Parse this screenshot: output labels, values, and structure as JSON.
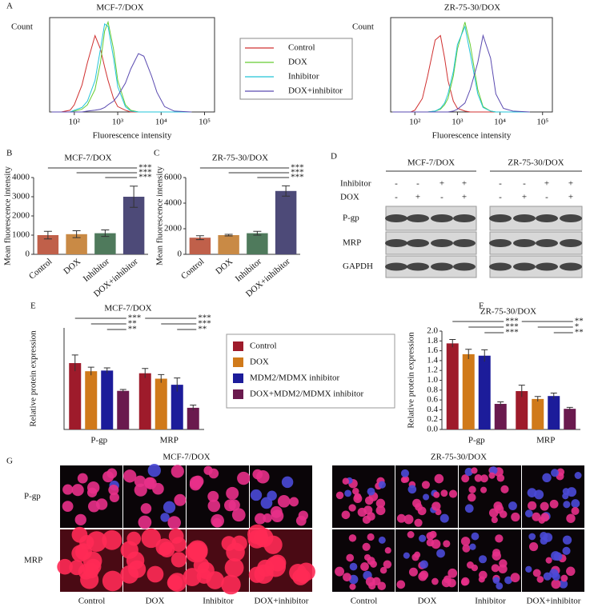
{
  "chart_data": [
    {
      "panel": "A",
      "type": "flow",
      "title": "MCF-7/DOX",
      "y_label": "Count",
      "x_label": "Fluorescence intensity",
      "log_x": true,
      "x": [
        30,
        50,
        80,
        100,
        150,
        200,
        300,
        400,
        500,
        600,
        800,
        1000,
        1500,
        2000,
        3000,
        4000,
        6000,
        8000,
        12000,
        20000,
        50000
      ],
      "xlim": [
        27,
        170000
      ],
      "xticks": [
        {
          "value": 100,
          "label": "10²"
        },
        {
          "value": 1000,
          "label": "10³"
        },
        {
          "value": 10000,
          "label": "10⁴"
        },
        {
          "value": 100000,
          "label": "10⁵"
        }
      ],
      "ylim": [
        0,
        105
      ],
      "series": [
        {
          "name": "Control",
          "color": "#d03030",
          "values": [
            0,
            0,
            2,
            8,
            30,
            55,
            85,
            70,
            50,
            35,
            15,
            6,
            2,
            0,
            0,
            0,
            0,
            0,
            0,
            0,
            0
          ]
        },
        {
          "name": "DOX",
          "color": "#66cc33",
          "values": [
            0,
            0,
            0,
            1,
            3,
            8,
            25,
            55,
            90,
            100,
            70,
            35,
            8,
            2,
            0,
            0,
            0,
            0,
            0,
            0,
            0
          ]
        },
        {
          "name": "Inhibitor",
          "color": "#22c4d8",
          "values": [
            0,
            0,
            0,
            2,
            5,
            12,
            35,
            70,
            98,
            95,
            60,
            28,
            6,
            1,
            0,
            0,
            0,
            0,
            0,
            0,
            0
          ]
        },
        {
          "name": "DOX+inhibitor",
          "color": "#5a4ab0",
          "values": [
            0,
            0,
            0,
            0,
            0,
            1,
            2,
            3,
            5,
            8,
            12,
            18,
            32,
            48,
            65,
            62,
            40,
            22,
            6,
            1,
            0
          ]
        }
      ]
    },
    {
      "type": "flow",
      "title": "ZR-75-30/DOX",
      "y_label": "Count",
      "x_label": "Fluorescence intensity",
      "log_x": true,
      "x": [
        30,
        50,
        80,
        100,
        150,
        200,
        300,
        400,
        500,
        600,
        800,
        1000,
        1500,
        2000,
        3000,
        4000,
        6000,
        8000,
        12000,
        20000,
        50000
      ],
      "xlim": [
        27,
        170000
      ],
      "xticks": [
        {
          "value": 100,
          "label": "10²"
        },
        {
          "value": 1000,
          "label": "10³"
        },
        {
          "value": 10000,
          "label": "10⁴"
        },
        {
          "value": 100000,
          "label": "10⁵"
        }
      ],
      "ylim": [
        0,
        105
      ],
      "series": [
        {
          "color": "#d03030",
          "values": [
            0,
            0,
            0,
            2,
            15,
            40,
            80,
            85,
            60,
            35,
            12,
            4,
            1,
            0,
            0,
            0,
            0,
            0,
            0,
            0,
            0
          ]
        },
        {
          "color": "#66cc33",
          "values": [
            0,
            0,
            0,
            0,
            0,
            0,
            1,
            3,
            8,
            15,
            40,
            70,
            100,
            75,
            25,
            6,
            1,
            0,
            0,
            0,
            0
          ]
        },
        {
          "color": "#22c4d8",
          "values": [
            0,
            0,
            0,
            0,
            0,
            0,
            1,
            4,
            10,
            20,
            45,
            75,
            95,
            65,
            20,
            5,
            1,
            0,
            0,
            0,
            0
          ]
        },
        {
          "color": "#5a4ab0",
          "values": [
            0,
            0,
            0,
            0,
            0,
            0,
            0,
            0,
            0,
            0,
            1,
            3,
            10,
            25,
            55,
            85,
            60,
            20,
            4,
            1,
            0
          ]
        }
      ]
    },
    {
      "panel": "B",
      "type": "bar",
      "title": "MCF-7/DOX",
      "y_label": "Mean fluorescence intensity",
      "categories": [
        "Control",
        "DOX",
        "Inhibitor",
        "DOX+inhibitor"
      ],
      "values": [
        1000,
        1050,
        1100,
        3000
      ],
      "errors": [
        200,
        180,
        170,
        550
      ],
      "colors": [
        "#c0604a",
        "#c98a45",
        "#4f7a5c",
        "#4d4a78"
      ],
      "ylim": [
        0,
        4000
      ],
      "yticks": [
        0,
        1000,
        2000,
        3000,
        4000
      ],
      "significance": [
        "***",
        "***",
        "***"
      ]
    },
    {
      "panel": "C",
      "type": "bar",
      "title": "ZR-75-30/DOX",
      "y_label": "Mean fluorescence intensity",
      "categories": [
        "Control",
        "DOX",
        "Inhibitor",
        "DOX+inhibitor"
      ],
      "values": [
        1300,
        1500,
        1650,
        4950
      ],
      "errors": [
        150,
        60,
        150,
        400
      ],
      "colors": [
        "#c0604a",
        "#c98a45",
        "#4f7a5c",
        "#4d4a78"
      ],
      "ylim": [
        0,
        6000
      ],
      "yticks": [
        0,
        2000,
        4000,
        6000
      ],
      "significance": [
        "***",
        "***",
        "***"
      ]
    },
    {
      "panel": "E",
      "type": "grouped_bar",
      "title": "MCF-7/DOX",
      "y_label": "Relative protein expression",
      "categories": [
        "P-gp",
        "MRP"
      ],
      "series": [
        {
          "name": "Control",
          "color": "#9e1b2b",
          "values": [
            0.98,
            0.83
          ],
          "errors": [
            0.12,
            0.07
          ]
        },
        {
          "name": "DOX",
          "color": "#d07a1a",
          "values": [
            0.86,
            0.75
          ],
          "errors": [
            0.06,
            0.06
          ]
        },
        {
          "name": "MDM2/MDMX inhibitor",
          "color": "#1c1c9a",
          "values": [
            0.87,
            0.66
          ],
          "errors": [
            0.04,
            0.1
          ]
        },
        {
          "name": "DOX+MDM2/MDMX inhibitor",
          "color": "#6a1a4e",
          "values": [
            0.57,
            0.32
          ],
          "errors": [
            0.02,
            0.04
          ]
        }
      ],
      "ylim": [
        0,
        1.5
      ],
      "significance": [
        [
          "***",
          "**",
          "**"
        ],
        [
          "***",
          "***",
          "**"
        ]
      ]
    },
    {
      "panel": "F",
      "type": "grouped_bar",
      "title": "ZR-75-30/DOX",
      "y_label": "Relative protein expression",
      "categories": [
        "P-gp",
        "MRP"
      ],
      "series": [
        {
          "color": "#9e1b2b",
          "values": [
            1.75,
            0.78
          ],
          "errors": [
            0.08,
            0.12
          ]
        },
        {
          "color": "#d07a1a",
          "values": [
            1.53,
            0.62
          ],
          "errors": [
            0.1,
            0.05
          ]
        },
        {
          "color": "#1c1c9a",
          "values": [
            1.5,
            0.68
          ],
          "errors": [
            0.12,
            0.06
          ]
        },
        {
          "color": "#6a1a4e",
          "values": [
            0.52,
            0.42
          ],
          "errors": [
            0.04,
            0.03
          ]
        }
      ],
      "ylim": [
        0,
        2
      ],
      "yticks": [
        {
          "value": 0,
          "label": "0.0"
        },
        0.2,
        0.4,
        0.6,
        0.8,
        {
          "value": 1,
          "label": "1.0"
        },
        1.2,
        1.4,
        1.6,
        1.8,
        {
          "value": 2,
          "label": "2.0"
        }
      ],
      "significance": [
        [
          "***",
          "***",
          "***"
        ],
        [
          "**",
          "*",
          "**"
        ]
      ]
    }
  ],
  "blot": {
    "panel": "D",
    "cell_lines": [
      "MCF-7/DOX",
      "ZR-75-30/DOX"
    ],
    "treatments": [
      {
        "name": "Inhibitor",
        "signs": [
          "-",
          "-",
          "+",
          "+",
          "-",
          "-",
          "+",
          "+"
        ]
      },
      {
        "name": "DOX",
        "signs": [
          "-",
          "+",
          "-",
          "+",
          "-",
          "+",
          "-",
          "+"
        ]
      }
    ],
    "proteins": [
      "P-gp",
      "MRP",
      "GAPDH"
    ]
  },
  "micrographs": {
    "panel": "G",
    "cell_lines": [
      "MCF-7/DOX",
      "ZR-75-30/DOX"
    ],
    "rows": [
      "P-gp",
      "MRP"
    ],
    "columns": [
      [
        "Control",
        "DOX",
        "Inhibitor",
        "DOX+inhibitor"
      ],
      [
        "Control",
        "DOX",
        "Inhibitor",
        "DOX+inhibitor"
      ]
    ]
  }
}
